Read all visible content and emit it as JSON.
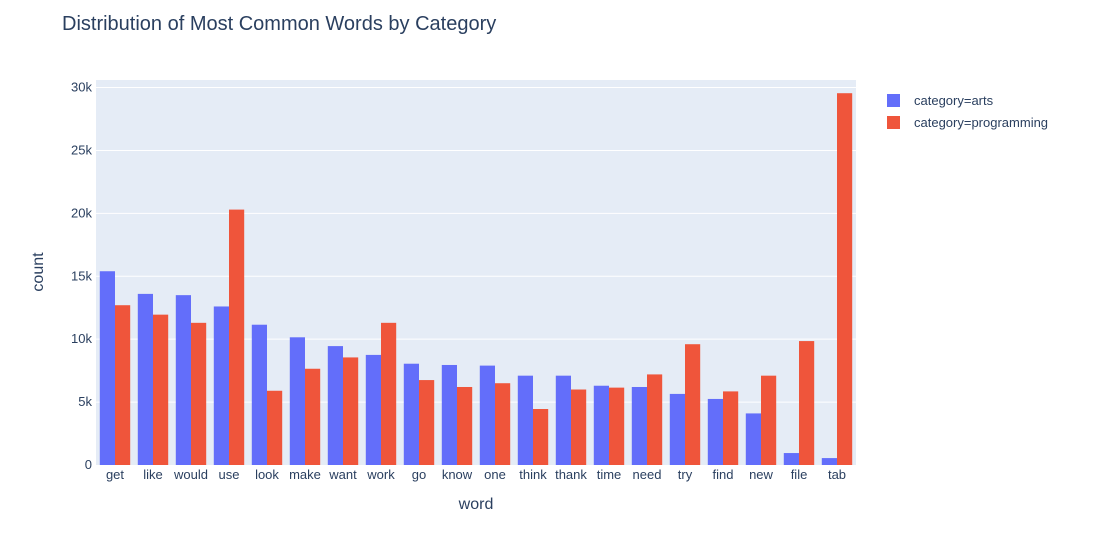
{
  "chart_data": {
    "type": "bar",
    "title": "Distribution of Most Common Words by Category",
    "xlabel": "word",
    "ylabel": "count",
    "categories": [
      "get",
      "like",
      "would",
      "use",
      "look",
      "make",
      "want",
      "work",
      "go",
      "know",
      "one",
      "think",
      "thank",
      "time",
      "need",
      "try",
      "find",
      "new",
      "file",
      "tab"
    ],
    "series": [
      {
        "name": "category=arts",
        "color": "#636efa",
        "values": [
          15400,
          13600,
          13500,
          12600,
          11150,
          10150,
          9450,
          8750,
          8050,
          7950,
          7900,
          7100,
          7100,
          6300,
          6200,
          5650,
          5250,
          4100,
          950,
          550
        ]
      },
      {
        "name": "category=programming",
        "color": "#ef553b",
        "values": [
          12700,
          11950,
          11300,
          20300,
          5900,
          7650,
          8550,
          11300,
          6750,
          6200,
          6500,
          4450,
          6000,
          6150,
          7200,
          9600,
          5850,
          7100,
          9850,
          29550
        ]
      }
    ],
    "ylim": [
      0,
      30600
    ],
    "yticks": [
      0,
      5000,
      10000,
      15000,
      20000,
      25000,
      30000
    ],
    "ytick_labels": [
      "0",
      "5k",
      "10k",
      "15k",
      "20k",
      "25k",
      "30k"
    ],
    "legend_position": "top-right",
    "grid": true,
    "plot_bg": "#e5ecf6"
  }
}
